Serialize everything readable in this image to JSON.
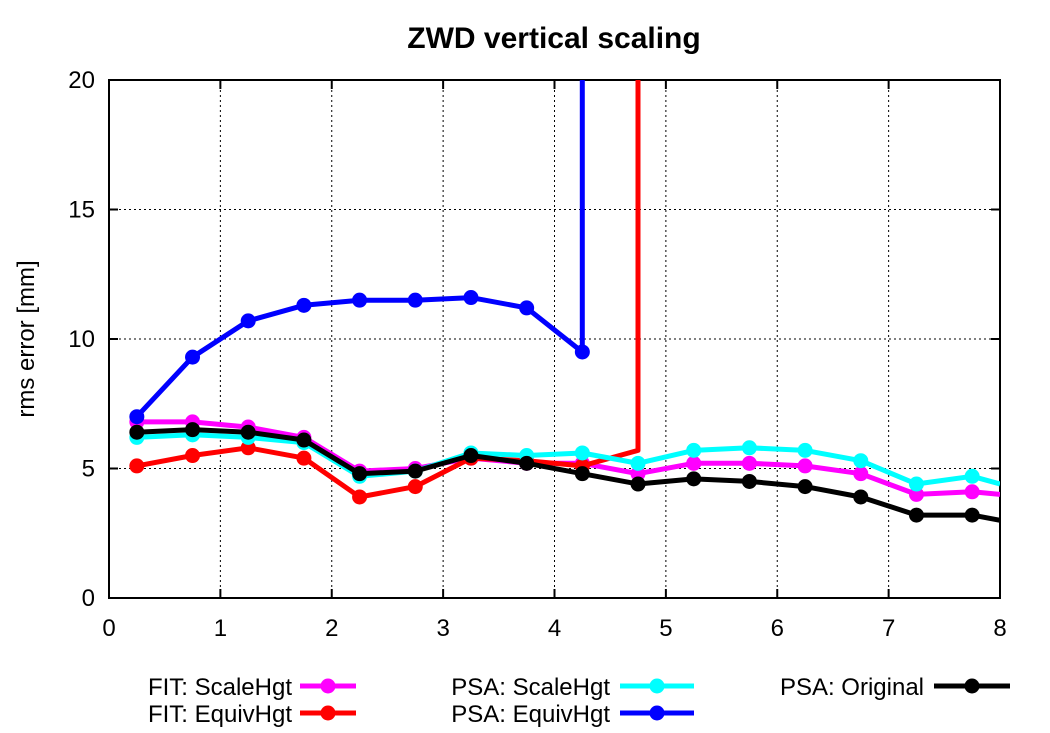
{
  "chart_data": {
    "type": "line",
    "title": "ZWD vertical scaling",
    "xlabel": "",
    "ylabel": "rms error [mm]",
    "xlim": [
      0,
      8
    ],
    "ylim": [
      0,
      20
    ],
    "xticks": [
      0,
      1,
      2,
      3,
      4,
      5,
      6,
      7,
      8
    ],
    "yticks": [
      0,
      5,
      10,
      15,
      20
    ],
    "grid": true,
    "legend_position": "bottom",
    "series": [
      {
        "name": "FIT: ScaleHgt",
        "color": "#ff00ff",
        "x": [
          0.25,
          0.75,
          1.25,
          1.75,
          2.25,
          2.75,
          3.25,
          3.75,
          4.25,
          4.75,
          5.25,
          5.75,
          6.25,
          6.75,
          7.25,
          7.75,
          8.0
        ],
        "y": [
          6.8,
          6.8,
          6.6,
          6.2,
          4.9,
          5.0,
          5.4,
          5.2,
          5.2,
          4.8,
          5.2,
          5.2,
          5.1,
          4.8,
          4.0,
          4.1,
          4.0
        ],
        "markers": [
          true,
          true,
          true,
          true,
          true,
          true,
          true,
          true,
          true,
          true,
          true,
          true,
          true,
          true,
          true,
          true,
          false
        ]
      },
      {
        "name": "FIT: EquivHgt",
        "color": "#ff0000",
        "x": [
          0.25,
          0.75,
          1.25,
          1.75,
          2.25,
          2.75,
          3.25,
          3.75,
          4.25,
          4.75,
          4.75
        ],
        "y": [
          5.1,
          5.5,
          5.8,
          5.4,
          3.9,
          4.3,
          5.4,
          5.3,
          5.1,
          5.7,
          20.0
        ],
        "markers": [
          true,
          true,
          true,
          true,
          true,
          true,
          true,
          true,
          true,
          false,
          false
        ]
      },
      {
        "name": "PSA: ScaleHgt",
        "color": "#00ffff",
        "x": [
          0.25,
          0.75,
          1.25,
          1.75,
          2.25,
          2.75,
          3.25,
          3.75,
          4.25,
          4.75,
          5.25,
          5.75,
          6.25,
          6.75,
          7.25,
          7.75,
          8.0
        ],
        "y": [
          6.2,
          6.3,
          6.2,
          6.0,
          4.7,
          4.9,
          5.6,
          5.5,
          5.6,
          5.2,
          5.7,
          5.8,
          5.7,
          5.3,
          4.4,
          4.7,
          4.4
        ],
        "markers": [
          true,
          true,
          true,
          true,
          true,
          true,
          true,
          true,
          true,
          true,
          true,
          true,
          true,
          true,
          true,
          true,
          false
        ]
      },
      {
        "name": "PSA: EquivHgt",
        "color": "#0000ff",
        "x": [
          0.25,
          0.75,
          1.25,
          1.75,
          2.25,
          2.75,
          3.25,
          3.75,
          4.25,
          4.25
        ],
        "y": [
          7.0,
          9.3,
          10.7,
          11.3,
          11.5,
          11.5,
          11.6,
          11.2,
          9.5,
          20.0
        ],
        "markers": [
          true,
          true,
          true,
          true,
          true,
          true,
          true,
          true,
          true,
          false
        ]
      },
      {
        "name": "PSA: Original",
        "color": "#000000",
        "x": [
          0.25,
          0.75,
          1.25,
          1.75,
          2.25,
          2.75,
          3.25,
          3.75,
          4.25,
          4.75,
          5.25,
          5.75,
          6.25,
          6.75,
          7.25,
          7.75,
          8.0
        ],
        "y": [
          6.4,
          6.5,
          6.4,
          6.1,
          4.8,
          4.9,
          5.5,
          5.2,
          4.8,
          4.4,
          4.6,
          4.5,
          4.3,
          3.9,
          3.2,
          3.2,
          3.0
        ],
        "markers": [
          true,
          true,
          true,
          true,
          true,
          true,
          true,
          true,
          true,
          true,
          true,
          true,
          true,
          true,
          true,
          true,
          false
        ]
      }
    ]
  }
}
